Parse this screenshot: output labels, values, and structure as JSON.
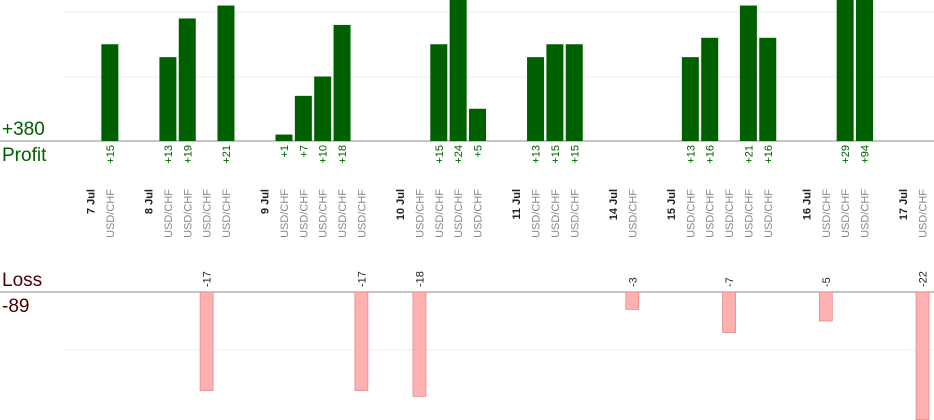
{
  "chart_data": {
    "type": "bar",
    "profit_total": "+380",
    "profit_label": "Profit",
    "loss_label": "Loss",
    "loss_total": "-89",
    "colors": {
      "profit": "#006000",
      "loss": "#ffb0b0",
      "date": "#222222",
      "pair": "#888888"
    },
    "slots": [
      {
        "date": "7 Jul"
      },
      {
        "pair": "USD/CHF",
        "profit": 15,
        "label": "+15"
      },
      {},
      {
        "date": "8 Jul"
      },
      {
        "pair": "USD/CHF",
        "profit": 13,
        "label": "+13"
      },
      {
        "pair": "USD/CHF",
        "profit": 19,
        "label": "+19"
      },
      {
        "pair": "USD/CHF",
        "loss": -17,
        "label": "-17"
      },
      {
        "pair": "USD/CHF",
        "profit": 21,
        "label": "+21"
      },
      {},
      {
        "date": "9 Jul"
      },
      {
        "pair": "USD/CHF",
        "profit": 1,
        "label": "+1"
      },
      {
        "pair": "USD/CHF",
        "profit": 7,
        "label": "+7"
      },
      {
        "pair": "USD/CHF",
        "profit": 10,
        "label": "+10"
      },
      {
        "pair": "USD/CHF",
        "profit": 18,
        "label": "+18"
      },
      {
        "pair": "USD/CHF",
        "loss": -17,
        "label": "-17"
      },
      {},
      {
        "date": "10 Jul"
      },
      {
        "pair": "USD/CHF",
        "loss": -18,
        "label": "-18"
      },
      {
        "pair": "USD/CHF",
        "profit": 15,
        "label": "+15"
      },
      {
        "pair": "USD/CHF",
        "profit": 24,
        "label": "+24"
      },
      {
        "pair": "USD/CHF",
        "profit": 5,
        "label": "+5"
      },
      {},
      {
        "date": "11 Jul"
      },
      {
        "pair": "USD/CHF",
        "profit": 13,
        "label": "+13"
      },
      {
        "pair": "USD/CHF",
        "profit": 15,
        "label": "+15"
      },
      {
        "pair": "USD/CHF",
        "profit": 15,
        "label": "+15"
      },
      {},
      {
        "date": "14 Jul"
      },
      {
        "pair": "USD/CHF",
        "loss": -3,
        "label": "-3"
      },
      {},
      {
        "date": "15 Jul"
      },
      {
        "pair": "USD/CHF",
        "profit": 13,
        "label": "+13"
      },
      {
        "pair": "USD/CHF",
        "profit": 16,
        "label": "+16"
      },
      {
        "pair": "USD/CHF",
        "loss": -7,
        "label": "-7"
      },
      {
        "pair": "USD/CHF",
        "profit": 21,
        "label": "+21"
      },
      {
        "pair": "USD/CHF",
        "profit": 16,
        "label": "+16"
      },
      {},
      {
        "date": "16 Jul"
      },
      {
        "pair": "USD/CHF",
        "loss": -5,
        "label": "-5"
      },
      {
        "pair": "USD/CHF",
        "profit": 29,
        "label": "+29"
      },
      {
        "pair": "USD/CHF",
        "profit": 94,
        "label": "+94"
      },
      {},
      {
        "date": "17 Jul"
      },
      {
        "pair": "USD/CHF",
        "loss": -22,
        "label": "-22"
      }
    ]
  }
}
